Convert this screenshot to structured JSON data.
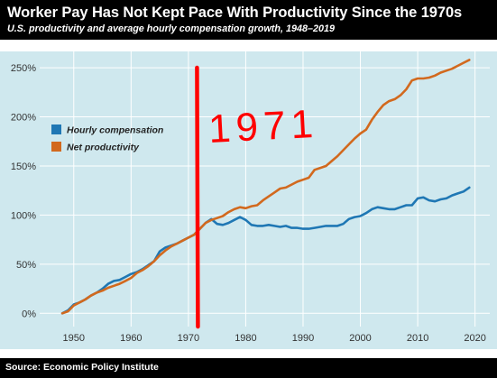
{
  "header": {
    "title": "Worker Pay Has Not Kept Pace With Productivity Since the 1970s",
    "subtitle": "U.S. productivity and average hourly compensation growth, 1948–2019"
  },
  "footer": {
    "source": "Source: Economic Policy Institute"
  },
  "annotation": {
    "text": "1971",
    "marker_year": 1971.5,
    "color": "#ff0000"
  },
  "colors": {
    "background": "#cfe8ee",
    "grid": "#ffffff",
    "hourly_compensation": "#1f77b4",
    "net_productivity": "#d2691e"
  },
  "chart_data": {
    "type": "line",
    "title": "Worker Pay Has Not Kept Pace With Productivity Since the 1970s",
    "subtitle": "U.S. productivity and average hourly compensation growth, 1948–2019",
    "xlabel": "",
    "ylabel": "",
    "xlim": [
      1945,
      2021
    ],
    "ylim": [
      -8,
      262
    ],
    "xticks": [
      1950,
      1960,
      1970,
      1980,
      1990,
      2000,
      2010,
      2020
    ],
    "xtick_labels": [
      "1950",
      "1960",
      "1970",
      "1980",
      "1990",
      "2000",
      "2010",
      "2020"
    ],
    "yticks": [
      0,
      50,
      100,
      150,
      200,
      250
    ],
    "ytick_labels": [
      "0%",
      "50%",
      "100%",
      "150%",
      "200%",
      "250%"
    ],
    "grid": true,
    "legend_position": "left-upper",
    "x": [
      1948,
      1949,
      1950,
      1951,
      1952,
      1953,
      1954,
      1955,
      1956,
      1957,
      1958,
      1959,
      1960,
      1961,
      1962,
      1963,
      1964,
      1965,
      1966,
      1967,
      1968,
      1969,
      1970,
      1971,
      1972,
      1973,
      1974,
      1975,
      1976,
      1977,
      1978,
      1979,
      1980,
      1981,
      1982,
      1983,
      1984,
      1985,
      1986,
      1987,
      1988,
      1989,
      1990,
      1991,
      1992,
      1993,
      1994,
      1995,
      1996,
      1997,
      1998,
      1999,
      2000,
      2001,
      2002,
      2003,
      2004,
      2005,
      2006,
      2007,
      2008,
      2009,
      2010,
      2011,
      2012,
      2013,
      2014,
      2015,
      2016,
      2017,
      2018,
      2019
    ],
    "series": [
      {
        "name": "Hourly compensation",
        "color": "#1f77b4",
        "values": [
          0,
          3,
          9,
          11,
          14,
          18,
          21,
          25,
          30,
          33,
          34,
          37,
          40,
          42,
          45,
          49,
          53,
          63,
          67,
          69,
          71,
          74,
          77,
          80,
          86,
          92,
          96,
          91,
          90,
          92,
          95,
          98,
          95,
          90,
          89,
          89,
          90,
          89,
          88,
          89,
          87,
          87,
          86,
          86,
          87,
          88,
          89,
          89,
          89,
          91,
          96,
          98,
          99,
          102,
          106,
          108,
          107,
          106,
          106,
          108,
          110,
          110,
          117,
          118,
          115,
          114,
          116,
          117,
          120,
          122,
          124,
          128
        ]
      },
      {
        "name": "Net productivity",
        "color": "#d2691e",
        "values": [
          0,
          2,
          8,
          11,
          14,
          18,
          21,
          23,
          26,
          28,
          30,
          33,
          36,
          41,
          44,
          48,
          53,
          59,
          64,
          68,
          71,
          74,
          77,
          80,
          86,
          92,
          95,
          97,
          99,
          103,
          106,
          108,
          107,
          109,
          110,
          115,
          119,
          123,
          127,
          128,
          131,
          134,
          136,
          138,
          146,
          148,
          150,
          155,
          160,
          166,
          172,
          178,
          183,
          187,
          197,
          205,
          212,
          216,
          218,
          222,
          228,
          237,
          239,
          239,
          240,
          242,
          245,
          247,
          249,
          252,
          255,
          258
        ]
      }
    ]
  }
}
